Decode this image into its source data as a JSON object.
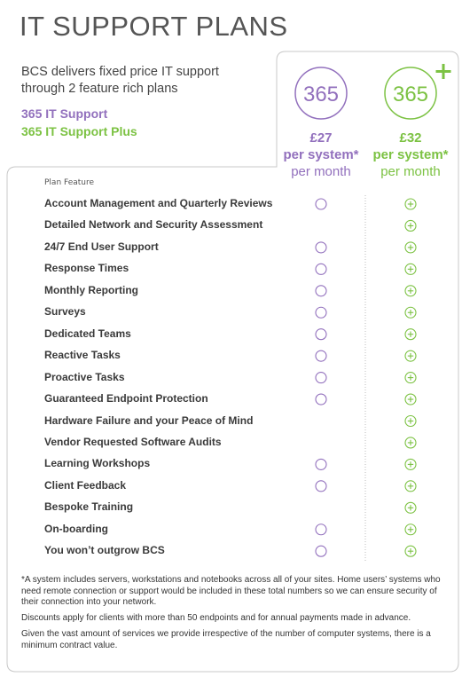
{
  "title": "IT SUPPORT PLANS",
  "intro": "BCS delivers fixed price IT support through 2 feature rich plans",
  "plans": [
    {
      "name": "365 IT Support",
      "badge": "365",
      "price": "£27",
      "unit": "per system*",
      "period": "per month",
      "color": "#9270bd"
    },
    {
      "name": "365 IT Support Plus",
      "badge": "365",
      "price": "£32",
      "unit": "per system*",
      "period": "per month",
      "color": "#7cc243"
    }
  ],
  "table": {
    "header": "Plan Feature",
    "rows": [
      {
        "feature": "Account Management and Quarterly Reviews",
        "included": [
          true,
          true
        ]
      },
      {
        "feature": "Detailed Network and Security Assessment",
        "included": [
          false,
          true
        ]
      },
      {
        "feature": "24/7 End User Support",
        "included": [
          true,
          true
        ]
      },
      {
        "feature": "Response Times",
        "included": [
          true,
          true
        ]
      },
      {
        "feature": "Monthly Reporting",
        "included": [
          true,
          true
        ]
      },
      {
        "feature": "Surveys",
        "included": [
          true,
          true
        ]
      },
      {
        "feature": "Dedicated Teams",
        "included": [
          true,
          true
        ]
      },
      {
        "feature": "Reactive Tasks",
        "included": [
          true,
          true
        ]
      },
      {
        "feature": "Proactive Tasks",
        "included": [
          true,
          true
        ]
      },
      {
        "feature": "Guaranteed Endpoint Protection",
        "included": [
          true,
          true
        ]
      },
      {
        "feature": "Hardware Failure and your Peace of Mind",
        "included": [
          false,
          true
        ]
      },
      {
        "feature": "Vendor Requested Software Audits",
        "included": [
          false,
          true
        ]
      },
      {
        "feature": "Learning Workshops",
        "included": [
          true,
          true
        ]
      },
      {
        "feature": "Client Feedback",
        "included": [
          true,
          true
        ]
      },
      {
        "feature": "Bespoke Training",
        "included": [
          false,
          true
        ]
      },
      {
        "feature": "On-boarding",
        "included": [
          true,
          true
        ]
      },
      {
        "feature": "You won’t outgrow BCS",
        "included": [
          true,
          true
        ]
      }
    ]
  },
  "notes": [
    "*A system includes servers, workstations and notebooks across all of your sites. Home users’ systems who need remote connection or support would be included in these total numbers so we can ensure security of their connection into your network.",
    "Discounts apply for clients with more than 50 endpoints and for annual payments made in advance.",
    "Given the vast amount of services we provide irrespective of the number of computer systems, there is a minimum contract value."
  ]
}
